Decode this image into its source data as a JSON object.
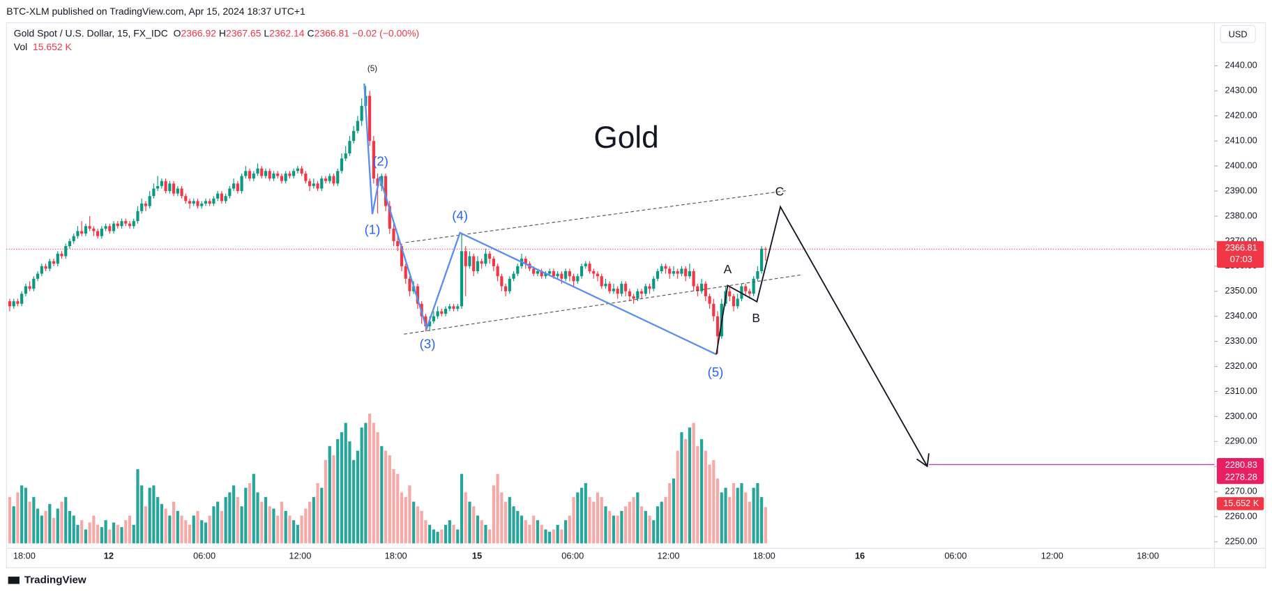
{
  "publisher": "BTC-XLM published on TradingView.com, Apr 15, 2024 18:37 UTC+1",
  "symbol": "Gold Spot / U.S. Dollar, 15, FX_IDC",
  "ohlc_letters": [
    "O",
    "H",
    "L",
    "C"
  ],
  "change_text": "−0.02 (−0.00%)",
  "volume_title": "Vol",
  "currency": "USD",
  "countdown": "07:03",
  "brand": "TradingView",
  "chart_data": {
    "type": "candlestick",
    "up_color": "#089981",
    "down_color": "#f23645",
    "volume_up_color": "#26a69a",
    "volume_down_color": "#f7a9a7",
    "grid": false,
    "ylim": [
      2248.7,
      2457.2
    ],
    "yticks": [
      {
        "value": 2250,
        "label": "2250.00"
      },
      {
        "value": 2260,
        "label": "2260.00"
      },
      {
        "value": 2270,
        "label": "2270.00"
      },
      {
        "value": 2280,
        "label": "2280.00"
      },
      {
        "value": 2290,
        "label": "2290.00"
      },
      {
        "value": 2300,
        "label": "2300.00"
      },
      {
        "value": 2310,
        "label": "2310.00"
      },
      {
        "value": 2320,
        "label": "2320.00"
      },
      {
        "value": 2330,
        "label": "2330.00"
      },
      {
        "value": 2340,
        "label": "2340.00"
      },
      {
        "value": 2350,
        "label": "2350.00"
      },
      {
        "value": 2360,
        "label": "2360.00"
      },
      {
        "value": 2370,
        "label": "2370.00"
      },
      {
        "value": 2380,
        "label": "2380.00"
      },
      {
        "value": 2390,
        "label": "2390.00"
      },
      {
        "value": 2400,
        "label": "2400.00"
      },
      {
        "value": 2410,
        "label": "2410.00"
      },
      {
        "value": 2420,
        "label": "2420.00"
      },
      {
        "value": 2430,
        "label": "2430.00"
      },
      {
        "value": 2440,
        "label": "2440.00"
      }
    ],
    "x_tick_labels": [
      "18:00",
      "12",
      "06:00",
      "12:00",
      "18:00",
      "15",
      "06:00",
      "12:00",
      "18:00",
      "16",
      "06:00",
      "12:00",
      "18:00"
    ],
    "target_prices": [
      2280.83,
      2278.28
    ],
    "volume_label": "15.652 K",
    "annotations": {
      "title": "Gold",
      "top_label": "(5)",
      "waves": [
        "(1)",
        "(2)",
        "(3)",
        "(4)",
        "(5)"
      ],
      "abc": [
        "A",
        "B",
        "C"
      ]
    },
    "ohlc": [
      [
        2346,
        2347,
        2342,
        2344
      ],
      [
        2344,
        2347,
        2343,
        2346
      ],
      [
        2346,
        2347,
        2344,
        2345
      ],
      [
        2345,
        2350,
        2344,
        2349
      ],
      [
        2349,
        2353,
        2348,
        2352
      ],
      [
        2352,
        2354,
        2350,
        2351
      ],
      [
        2351,
        2356,
        2350,
        2355
      ],
      [
        2355,
        2358,
        2354,
        2357
      ],
      [
        2357,
        2361,
        2356,
        2360
      ],
      [
        2360,
        2361,
        2358,
        2359
      ],
      [
        2359,
        2363,
        2358,
        2362
      ],
      [
        2362,
        2363,
        2360,
        2361
      ],
      [
        2361,
        2366,
        2360,
        2365
      ],
      [
        2365,
        2366,
        2363,
        2364
      ],
      [
        2364,
        2369,
        2363,
        2368
      ],
      [
        2368,
        2371,
        2367,
        2370
      ],
      [
        2370,
        2373,
        2369,
        2372
      ],
      [
        2372,
        2376,
        2371,
        2374
      ],
      [
        2374,
        2378,
        2372,
        2373
      ],
      [
        2373,
        2377,
        2372,
        2376
      ],
      [
        2376,
        2380,
        2374,
        2375
      ],
      [
        2375,
        2376,
        2372,
        2374
      ],
      [
        2374,
        2375,
        2371,
        2372
      ],
      [
        2372,
        2376,
        2371,
        2375
      ],
      [
        2375,
        2377,
        2374,
        2376
      ],
      [
        2376,
        2377,
        2373,
        2374
      ],
      [
        2374,
        2378,
        2373,
        2377
      ],
      [
        2377,
        2378,
        2375,
        2376
      ],
      [
        2376,
        2379,
        2375,
        2378
      ],
      [
        2378,
        2379,
        2376,
        2377
      ],
      [
        2377,
        2378,
        2375,
        2376
      ],
      [
        2376,
        2379,
        2375,
        2378
      ],
      [
        2378,
        2384,
        2377,
        2382
      ],
      [
        2382,
        2387,
        2381,
        2385
      ],
      [
        2385,
        2386,
        2382,
        2384
      ],
      [
        2384,
        2390,
        2383,
        2388
      ],
      [
        2388,
        2393,
        2387,
        2391
      ],
      [
        2391,
        2396,
        2390,
        2392
      ],
      [
        2392,
        2395,
        2391,
        2394
      ],
      [
        2394,
        2395,
        2389,
        2390
      ],
      [
        2390,
        2394,
        2389,
        2393
      ],
      [
        2393,
        2394,
        2388,
        2389
      ],
      [
        2389,
        2392,
        2388,
        2391
      ],
      [
        2391,
        2392,
        2387,
        2388
      ],
      [
        2388,
        2389,
        2385,
        2386
      ],
      [
        2386,
        2387,
        2383,
        2385
      ],
      [
        2385,
        2387,
        2384,
        2386
      ],
      [
        2386,
        2387,
        2383,
        2384
      ],
      [
        2384,
        2386,
        2383,
        2385
      ],
      [
        2385,
        2387,
        2384,
        2386
      ],
      [
        2386,
        2387,
        2384,
        2385
      ],
      [
        2385,
        2388,
        2384,
        2387
      ],
      [
        2387,
        2390,
        2386,
        2389
      ],
      [
        2389,
        2390,
        2385,
        2386
      ],
      [
        2386,
        2389,
        2385,
        2388
      ],
      [
        2388,
        2392,
        2387,
        2391
      ],
      [
        2391,
        2395,
        2390,
        2393
      ],
      [
        2393,
        2394,
        2389,
        2390
      ],
      [
        2390,
        2397,
        2389,
        2396
      ],
      [
        2396,
        2400,
        2395,
        2398
      ],
      [
        2398,
        2399,
        2394,
        2395
      ],
      [
        2395,
        2398,
        2394,
        2397
      ],
      [
        2397,
        2401,
        2396,
        2399
      ],
      [
        2399,
        2400,
        2395,
        2396
      ],
      [
        2396,
        2399,
        2395,
        2398
      ],
      [
        2398,
        2399,
        2394,
        2395
      ],
      [
        2395,
        2398,
        2394,
        2397
      ],
      [
        2397,
        2398,
        2395,
        2396
      ],
      [
        2396,
        2397,
        2393,
        2394
      ],
      [
        2394,
        2398,
        2393,
        2397
      ],
      [
        2397,
        2398,
        2395,
        2396
      ],
      [
        2396,
        2399,
        2395,
        2398
      ],
      [
        2398,
        2400,
        2397,
        2399
      ],
      [
        2399,
        2400,
        2396,
        2397
      ],
      [
        2397,
        2398,
        2393,
        2394
      ],
      [
        2394,
        2395,
        2390,
        2392
      ],
      [
        2392,
        2395,
        2391,
        2393
      ],
      [
        2393,
        2394,
        2390,
        2391
      ],
      [
        2391,
        2396,
        2390,
        2395
      ],
      [
        2395,
        2396,
        2393,
        2394
      ],
      [
        2394,
        2397,
        2393,
        2396
      ],
      [
        2396,
        2397,
        2392,
        2393
      ],
      [
        2393,
        2399,
        2392,
        2398
      ],
      [
        2398,
        2405,
        2397,
        2403
      ],
      [
        2403,
        2408,
        2402,
        2405
      ],
      [
        2405,
        2412,
        2404,
        2410
      ],
      [
        2410,
        2416,
        2409,
        2414
      ],
      [
        2414,
        2420,
        2413,
        2418
      ],
      [
        2418,
        2427,
        2416,
        2424
      ],
      [
        2424,
        2432,
        2422,
        2428
      ],
      [
        2428,
        2430,
        2408,
        2410
      ],
      [
        2410,
        2412,
        2393,
        2395
      ],
      [
        2395,
        2397,
        2381,
        2392
      ],
      [
        2392,
        2397,
        2390,
        2396
      ],
      [
        2396,
        2397,
        2382,
        2384
      ],
      [
        2384,
        2386,
        2373,
        2375
      ],
      [
        2375,
        2377,
        2368,
        2370
      ],
      [
        2370,
        2372,
        2366,
        2368
      ],
      [
        2368,
        2369,
        2358,
        2360
      ],
      [
        2360,
        2361,
        2353,
        2355
      ],
      [
        2355,
        2356,
        2348,
        2350
      ],
      [
        2350,
        2354,
        2349,
        2352
      ],
      [
        2352,
        2353,
        2343,
        2345
      ],
      [
        2345,
        2346,
        2337,
        2340
      ],
      [
        2340,
        2341,
        2334,
        2336
      ],
      [
        2336,
        2340,
        2334,
        2338
      ],
      [
        2338,
        2342,
        2337,
        2340
      ],
      [
        2340,
        2344,
        2339,
        2342
      ],
      [
        2342,
        2343,
        2340,
        2341
      ],
      [
        2341,
        2344,
        2340,
        2343
      ],
      [
        2343,
        2345,
        2342,
        2344
      ],
      [
        2344,
        2345,
        2342,
        2343
      ],
      [
        2343,
        2345,
        2342,
        2344
      ],
      [
        2344,
        2373,
        2343,
        2366
      ],
      [
        2366,
        2368,
        2348,
        2360
      ],
      [
        2360,
        2366,
        2359,
        2364
      ],
      [
        2364,
        2365,
        2356,
        2358
      ],
      [
        2358,
        2364,
        2357,
        2362
      ],
      [
        2362,
        2363,
        2359,
        2361
      ],
      [
        2361,
        2367,
        2360,
        2365
      ],
      [
        2365,
        2366,
        2361,
        2363
      ],
      [
        2363,
        2364,
        2358,
        2360
      ],
      [
        2360,
        2361,
        2354,
        2356
      ],
      [
        2356,
        2357,
        2350,
        2352
      ],
      [
        2352,
        2353,
        2348,
        2350
      ],
      [
        2350,
        2356,
        2349,
        2355
      ],
      [
        2355,
        2358,
        2354,
        2357
      ],
      [
        2357,
        2361,
        2356,
        2360
      ],
      [
        2360,
        2365,
        2359,
        2363
      ],
      [
        2363,
        2364,
        2359,
        2361
      ],
      [
        2361,
        2362,
        2358,
        2359
      ],
      [
        2359,
        2360,
        2356,
        2357
      ],
      [
        2357,
        2359,
        2356,
        2358
      ],
      [
        2358,
        2359,
        2355,
        2356
      ],
      [
        2356,
        2358,
        2355,
        2357
      ],
      [
        2357,
        2359,
        2356,
        2358
      ],
      [
        2358,
        2359,
        2355,
        2356
      ],
      [
        2356,
        2358,
        2355,
        2357
      ],
      [
        2357,
        2358,
        2353,
        2355
      ],
      [
        2355,
        2359,
        2354,
        2358
      ],
      [
        2358,
        2359,
        2354,
        2356
      ],
      [
        2356,
        2357,
        2352,
        2354
      ],
      [
        2354,
        2357,
        2353,
        2356
      ],
      [
        2356,
        2361,
        2355,
        2360
      ],
      [
        2360,
        2362,
        2359,
        2361
      ],
      [
        2361,
        2362,
        2357,
        2358
      ],
      [
        2358,
        2359,
        2355,
        2357
      ],
      [
        2357,
        2358,
        2354,
        2356
      ],
      [
        2356,
        2357,
        2351,
        2352
      ],
      [
        2352,
        2355,
        2351,
        2353
      ],
      [
        2353,
        2354,
        2349,
        2350
      ],
      [
        2350,
        2353,
        2349,
        2351
      ],
      [
        2351,
        2352,
        2347,
        2349
      ],
      [
        2349,
        2354,
        2348,
        2353
      ],
      [
        2353,
        2354,
        2348,
        2350
      ],
      [
        2350,
        2351,
        2346,
        2348
      ],
      [
        2348,
        2349,
        2345,
        2347
      ],
      [
        2347,
        2351,
        2346,
        2350
      ],
      [
        2350,
        2351,
        2347,
        2349
      ],
      [
        2349,
        2353,
        2348,
        2352
      ],
      [
        2352,
        2353,
        2349,
        2351
      ],
      [
        2351,
        2356,
        2350,
        2355
      ],
      [
        2355,
        2359,
        2354,
        2358
      ],
      [
        2358,
        2361,
        2357,
        2360
      ],
      [
        2360,
        2361,
        2357,
        2359
      ],
      [
        2359,
        2360,
        2355,
        2357
      ],
      [
        2357,
        2360,
        2356,
        2358
      ],
      [
        2358,
        2359,
        2355,
        2357
      ],
      [
        2357,
        2360,
        2356,
        2359
      ],
      [
        2359,
        2360,
        2354,
        2356
      ],
      [
        2356,
        2361,
        2355,
        2358
      ],
      [
        2358,
        2359,
        2350,
        2352
      ],
      [
        2352,
        2353,
        2348,
        2350
      ],
      [
        2350,
        2355,
        2349,
        2353
      ],
      [
        2353,
        2354,
        2346,
        2348
      ],
      [
        2348,
        2349,
        2343,
        2345
      ],
      [
        2345,
        2347,
        2338,
        2340
      ],
      [
        2340,
        2342,
        2325,
        2332
      ],
      [
        2332,
        2347,
        2331,
        2345
      ],
      [
        2345,
        2352,
        2344,
        2350
      ],
      [
        2350,
        2352,
        2346,
        2348
      ],
      [
        2348,
        2349,
        2342,
        2344
      ],
      [
        2344,
        2349,
        2343,
        2347
      ],
      [
        2347,
        2353,
        2346,
        2352
      ],
      [
        2352,
        2353,
        2348,
        2350
      ],
      [
        2350,
        2351,
        2347,
        2349
      ],
      [
        2349,
        2356,
        2348,
        2355
      ],
      [
        2355,
        2360,
        2354,
        2358
      ],
      [
        2358,
        2368,
        2357,
        2367
      ],
      [
        2366.92,
        2367.65,
        2362.14,
        2366.81
      ]
    ],
    "volume": [
      20,
      16,
      22,
      25,
      24,
      18,
      20,
      15,
      12,
      14,
      17,
      11,
      15,
      18,
      20,
      14,
      12,
      8,
      10,
      6,
      9,
      12,
      8,
      7,
      10,
      6,
      9,
      8,
      7,
      10,
      12,
      8,
      32,
      25,
      16,
      24,
      25,
      20,
      17,
      15,
      12,
      18,
      14,
      12,
      10,
      8,
      12,
      14,
      10,
      9,
      12,
      16,
      18,
      14,
      20,
      22,
      25,
      20,
      16,
      24,
      26,
      30,
      22,
      18,
      20,
      16,
      15,
      12,
      18,
      14,
      12,
      10,
      8,
      12,
      15,
      18,
      20,
      26,
      24,
      36,
      42,
      38,
      45,
      48,
      52,
      44,
      36,
      40,
      50,
      52,
      56,
      52,
      48,
      42,
      40,
      38,
      32,
      30,
      22,
      20,
      25,
      18,
      16,
      14,
      10,
      8,
      6,
      5,
      6,
      8,
      10,
      8,
      6,
      30,
      22,
      18,
      16,
      12,
      10,
      8,
      6,
      25,
      30,
      22,
      18,
      20,
      16,
      14,
      12,
      10,
      8,
      12,
      10,
      8,
      6,
      5,
      6,
      8,
      6,
      10,
      12,
      20,
      22,
      24,
      26,
      20,
      18,
      22,
      20,
      16,
      14,
      12,
      12,
      14,
      16,
      18,
      20,
      22,
      16,
      14,
      12,
      10,
      16,
      18,
      20,
      26,
      28,
      40,
      48,
      45,
      50,
      52,
      42,
      45,
      40,
      34,
      36,
      28,
      22,
      24,
      20,
      26,
      24,
      26,
      22,
      18,
      24,
      26,
      20,
      15.652
    ]
  }
}
